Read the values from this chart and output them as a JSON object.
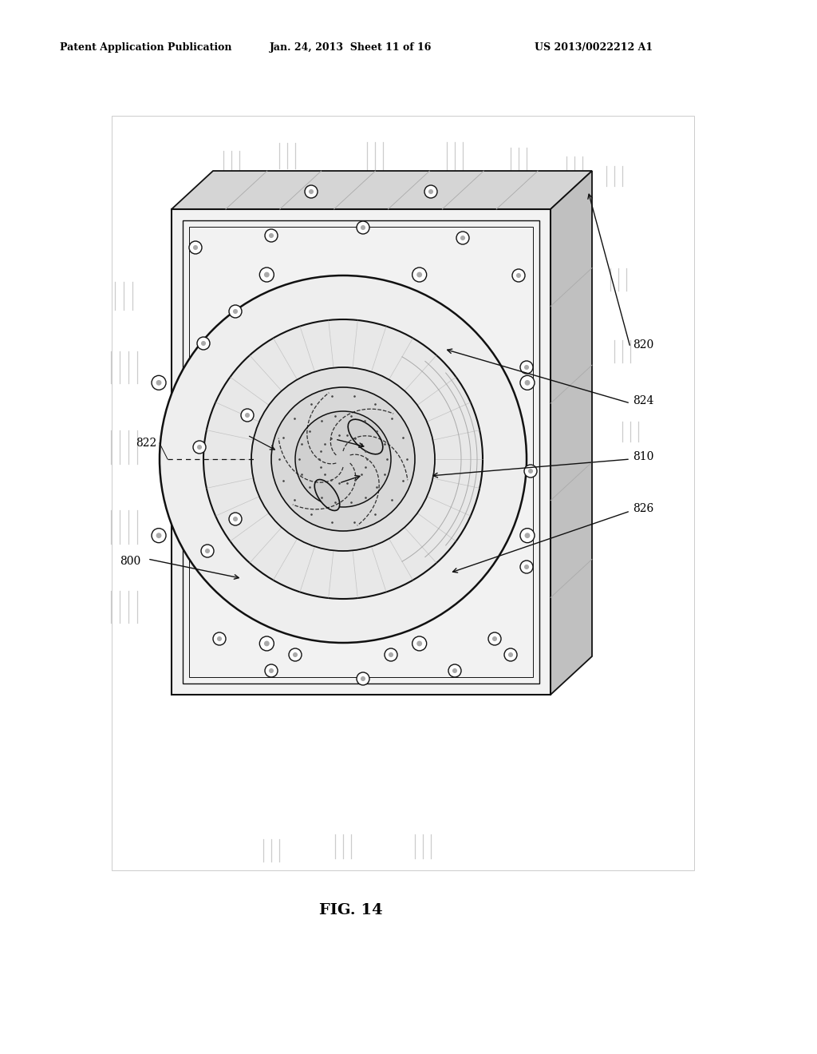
{
  "bg_color": "#ffffff",
  "header_left": "Patent Application Publication",
  "header_mid": "Jan. 24, 2013  Sheet 11 of 16",
  "header_right": "US 2013/0022212 A1",
  "fig_label": "FIG. 14",
  "dark": "#111111",
  "med": "#666666",
  "gray": "#aaaaaa",
  "light_gray": "#cccccc"
}
